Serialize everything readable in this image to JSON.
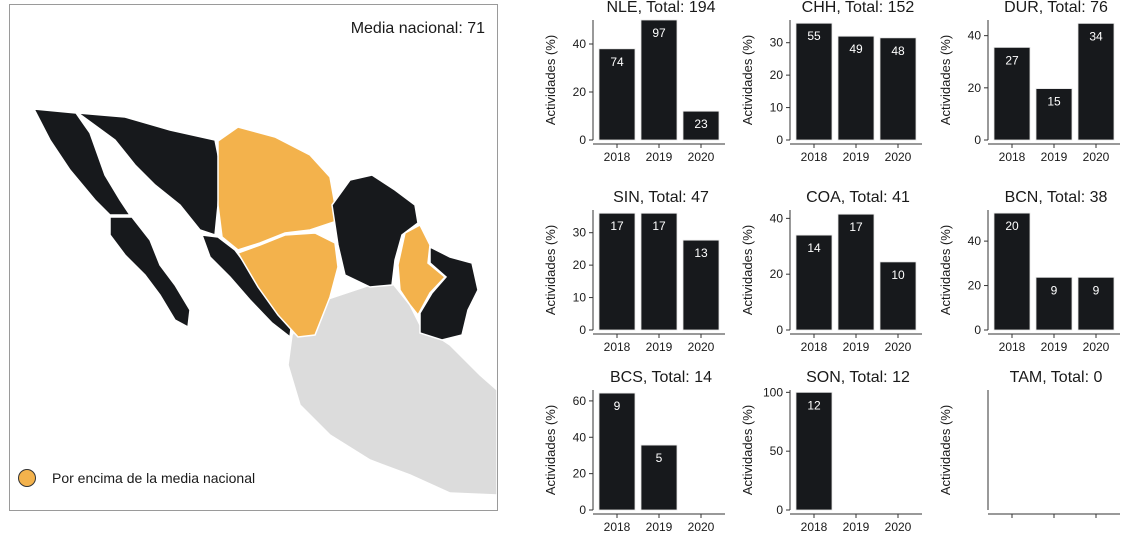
{
  "map": {
    "mean_label": "Media nacional: 71",
    "legend_label": "Por encima de la media nacional",
    "colors": {
      "above_mean": "#f3b24c",
      "below_mean": "#17191c",
      "no_data": "#dcdcdc",
      "border": "#ffffff"
    }
  },
  "chart_data": [
    {
      "type": "bar",
      "title": "NLE, Total: 194",
      "ylabel": "Actividades (%)",
      "categories": [
        "2018",
        "2019",
        "2020"
      ],
      "values": [
        38,
        50,
        12
      ],
      "labels": [
        "74",
        "97",
        "23"
      ],
      "ylim": [
        0,
        50
      ],
      "yticks": [
        0,
        20,
        40
      ]
    },
    {
      "type": "bar",
      "title": "CHH, Total: 152",
      "ylabel": "Actividades (%)",
      "categories": [
        "2018",
        "2019",
        "2020"
      ],
      "values": [
        36,
        32,
        31.5
      ],
      "labels": [
        "55",
        "49",
        "48"
      ],
      "ylim": [
        0,
        37
      ],
      "yticks": [
        0,
        10,
        20,
        30
      ]
    },
    {
      "type": "bar",
      "title": "DUR, Total: 76",
      "ylabel": "Actividades (%)",
      "categories": [
        "2018",
        "2019",
        "2020"
      ],
      "values": [
        35.5,
        19.7,
        44.7
      ],
      "labels": [
        "27",
        "15",
        "34"
      ],
      "ylim": [
        0,
        46
      ],
      "yticks": [
        0,
        20,
        40
      ]
    },
    {
      "type": "bar",
      "title": "SIN, Total: 47",
      "ylabel": "Actividades (%)",
      "categories": [
        "2018",
        "2019",
        "2020"
      ],
      "values": [
        36,
        36,
        27.7
      ],
      "labels": [
        "17",
        "17",
        "13"
      ],
      "ylim": [
        0,
        37
      ],
      "yticks": [
        0,
        10,
        20,
        30
      ]
    },
    {
      "type": "bar",
      "title": "COA, Total: 41",
      "ylabel": "Actividades (%)",
      "categories": [
        "2018",
        "2019",
        "2020"
      ],
      "values": [
        34,
        41.5,
        24.4
      ],
      "labels": [
        "14",
        "17",
        "10"
      ],
      "ylim": [
        0,
        43
      ],
      "yticks": [
        0,
        20,
        40
      ]
    },
    {
      "type": "bar",
      "title": "BCN, Total: 38",
      "ylabel": "Actividades (%)",
      "categories": [
        "2018",
        "2019",
        "2020"
      ],
      "values": [
        52.6,
        23.7,
        23.7
      ],
      "labels": [
        "20",
        "9",
        "9"
      ],
      "ylim": [
        0,
        54
      ],
      "yticks": [
        0,
        20,
        40
      ]
    },
    {
      "type": "bar",
      "title": "BCS, Total: 14",
      "ylabel": "Actividades (%)",
      "categories": [
        "2018",
        "2019",
        "2020"
      ],
      "values": [
        64.3,
        35.7,
        0
      ],
      "labels": [
        "9",
        "5",
        ""
      ],
      "ylim": [
        0,
        66
      ],
      "yticks": [
        0,
        20,
        40,
        60
      ]
    },
    {
      "type": "bar",
      "title": "SON, Total: 12",
      "ylabel": "Actividades (%)",
      "categories": [
        "2018",
        "2019",
        "2020"
      ],
      "values": [
        100,
        0,
        0
      ],
      "labels": [
        "12",
        "",
        ""
      ],
      "ylim": [
        0,
        102
      ],
      "yticks": [
        0,
        50,
        100
      ]
    },
    {
      "type": "bar",
      "title": "TAM, Total: 0",
      "ylabel": "Actividades (%)",
      "categories": [
        "",
        "",
        ""
      ],
      "values": [],
      "labels": [],
      "ylim": [
        0,
        1
      ],
      "yticks": []
    }
  ]
}
